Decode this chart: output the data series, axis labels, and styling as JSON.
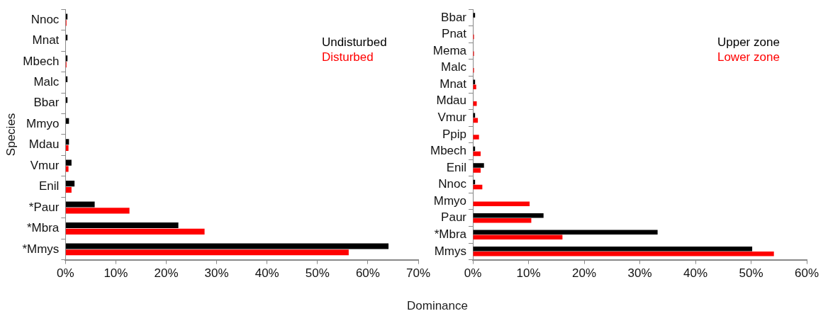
{
  "chart_data": [
    {
      "type": "bar",
      "orientation": "horizontal",
      "ylabel": "Species",
      "xlabel": "Dominance",
      "categories": [
        "Nnoc",
        "Mnat",
        "Mbech",
        "Malc",
        "Bbar",
        "Mmyo",
        "Mdau",
        "Vmur",
        "Enil",
        "*Paur",
        "*Mbra",
        "*Mmys"
      ],
      "series": [
        {
          "name": "Undisturbed",
          "color": "#000000",
          "values": [
            0.4,
            0.4,
            0.4,
            0.4,
            0.4,
            0.7,
            0.7,
            1.2,
            1.8,
            5.8,
            22.4,
            64.1
          ]
        },
        {
          "name": "Disturbed",
          "color": "#ff0000",
          "values": [
            0.2,
            null,
            0.2,
            null,
            null,
            null,
            0.6,
            0.6,
            1.2,
            12.7,
            27.6,
            56.2
          ]
        }
      ],
      "xlim": [
        0,
        70
      ],
      "xticks": [
        {
          "value": 0,
          "label": "0%"
        },
        {
          "value": 10,
          "label": "10%"
        },
        {
          "value": 20,
          "label": "20%"
        },
        {
          "value": 30,
          "label": "30%"
        },
        {
          "value": 40,
          "label": "40%"
        },
        {
          "value": 50,
          "label": "50%"
        },
        {
          "value": 60,
          "label": "60%"
        },
        {
          "value": 70,
          "label": "70%"
        }
      ],
      "grid": false,
      "legend": "top right"
    },
    {
      "type": "bar",
      "orientation": "horizontal",
      "categories": [
        "Bbar",
        "Pnat",
        "Mema",
        "Malc",
        "Mnat",
        "Mdau",
        "Vmur",
        "Ppip",
        "Mbech",
        "Enil",
        "Nnoc",
        "Mmyo",
        "Paur",
        "*Mbra",
        "Mmys"
      ],
      "series": [
        {
          "name": "Upper zone",
          "color": "#000000",
          "values": [
            0.4,
            null,
            null,
            null,
            0.4,
            null,
            0.4,
            null,
            0.4,
            2.0,
            0.4,
            null,
            12.7,
            33.2,
            50.2
          ]
        },
        {
          "name": "Lower zone",
          "color": "#ff0000",
          "values": [
            null,
            0.2,
            0.2,
            0.2,
            0.6,
            0.7,
            0.9,
            1.1,
            1.4,
            1.4,
            1.7,
            10.2,
            10.5,
            16.1,
            54.1
          ]
        }
      ],
      "xlim": [
        0,
        60
      ],
      "xticks": [
        {
          "value": 0,
          "label": "0%"
        },
        {
          "value": 10,
          "label": "10%"
        },
        {
          "value": 20,
          "label": "20%"
        },
        {
          "value": 30,
          "label": "30%"
        },
        {
          "value": 40,
          "label": "40%"
        },
        {
          "value": 50,
          "label": "50%"
        },
        {
          "value": 60,
          "label": "60%"
        }
      ],
      "grid": false,
      "legend": "top right"
    }
  ]
}
